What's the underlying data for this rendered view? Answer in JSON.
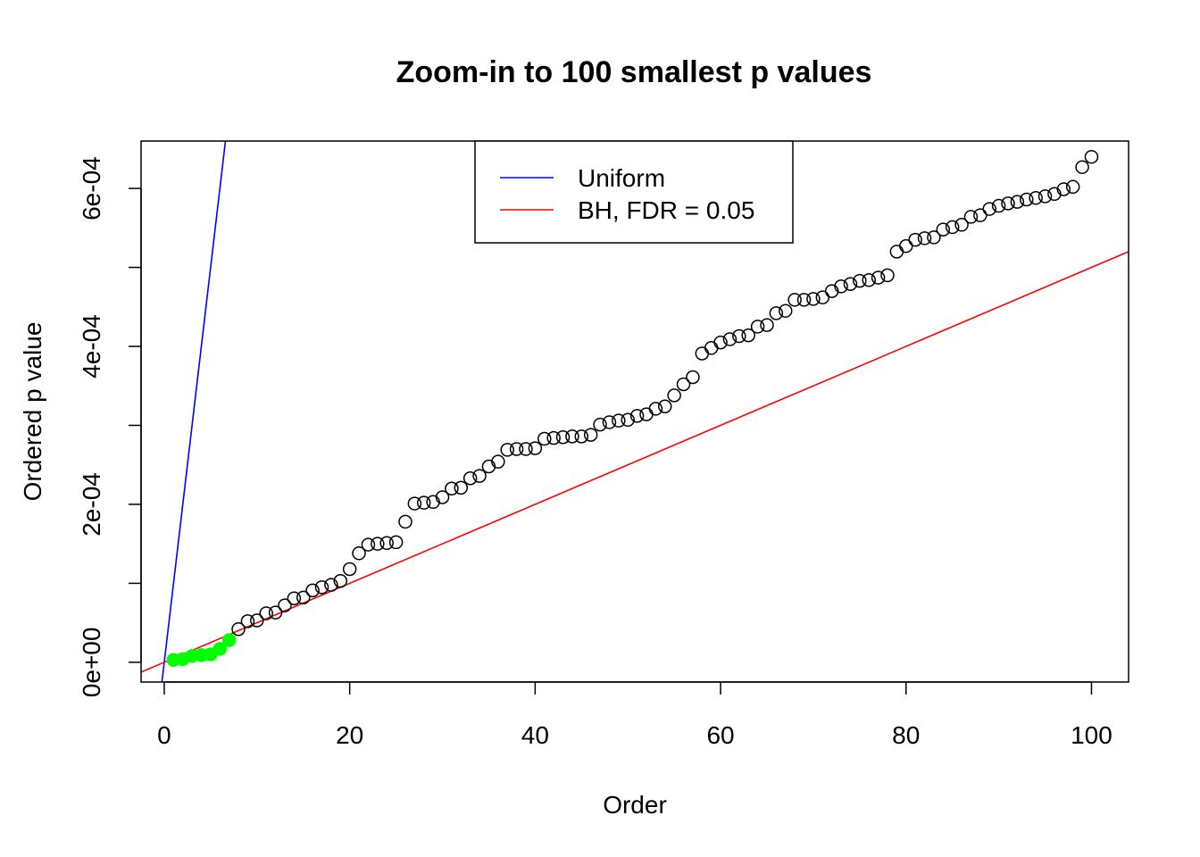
{
  "chart_data": {
    "type": "scatter",
    "title": "Zoom-in to 100 smallest p values",
    "xlabel": "Order",
    "ylabel": "Ordered p value",
    "xlim": [
      -2.5,
      104
    ],
    "ylim": [
      -2.5e-05,
      0.00066
    ],
    "x_ticks": [
      0,
      20,
      40,
      60,
      80,
      100
    ],
    "x_tick_labels": [
      "0",
      "20",
      "40",
      "60",
      "80",
      "100"
    ],
    "y_ticks": [
      0,
      0.0001,
      0.0002,
      0.0003,
      0.0004,
      0.0005,
      0.0006
    ],
    "y_tick_labels": [
      "0e+00",
      "",
      "2e-04",
      "",
      "4e-04",
      "",
      "6e-04"
    ],
    "grid": false,
    "legend": {
      "position": "top-center",
      "entries": [
        {
          "label": "Uniform",
          "color": "#0000ff"
        },
        {
          "label": "BH, FDR = 0.05",
          "color": "#ff0000"
        }
      ]
    },
    "lines": [
      {
        "name": "Uniform",
        "color": "#0000ff",
        "intercept": 0,
        "slope": 0.0001
      },
      {
        "name": "BH, FDR = 0.05",
        "color": "#ff0000",
        "intercept": 0,
        "slope": 5e-06
      }
    ],
    "significant_color": "#00ff00",
    "significant_count": 7,
    "x": [
      1,
      2,
      3,
      4,
      5,
      6,
      7,
      8,
      9,
      10,
      11,
      12,
      13,
      14,
      15,
      16,
      17,
      18,
      19,
      20,
      21,
      22,
      23,
      24,
      25,
      26,
      27,
      28,
      29,
      30,
      31,
      32,
      33,
      34,
      35,
      36,
      37,
      38,
      39,
      40,
      41,
      42,
      43,
      44,
      45,
      46,
      47,
      48,
      49,
      50,
      51,
      52,
      53,
      54,
      55,
      56,
      57,
      58,
      59,
      60,
      61,
      62,
      63,
      64,
      65,
      66,
      67,
      68,
      69,
      70,
      71,
      72,
      73,
      74,
      75,
      76,
      77,
      78,
      79,
      80,
      81,
      82,
      83,
      84,
      85,
      86,
      87,
      88,
      89,
      90,
      91,
      92,
      93,
      94,
      95,
      96,
      97,
      98,
      99,
      100
    ],
    "y": [
      3e-06,
      4e-06,
      8e-06,
      9e-06,
      1e-05,
      1.7e-05,
      2.8e-05,
      4.2e-05,
      5.2e-05,
      5.3e-05,
      6.2e-05,
      6.3e-05,
      7.2e-05,
      8.1e-05,
      8.2e-05,
      9.1e-05,
      9.5e-05,
      9.8e-05,
      0.000103,
      0.000118,
      0.000138,
      0.000149,
      0.00015,
      0.000151,
      0.000152,
      0.000178,
      0.000201,
      0.000202,
      0.000203,
      0.000209,
      0.00022,
      0.000221,
      0.000233,
      0.000236,
      0.000248,
      0.000254,
      0.000269,
      0.00027,
      0.00027,
      0.000271,
      0.000283,
      0.000284,
      0.000285,
      0.000286,
      0.000286,
      0.000288,
      0.000301,
      0.000304,
      0.000306,
      0.000307,
      0.000312,
      0.000314,
      0.000321,
      0.000324,
      0.000338,
      0.000352,
      0.000361,
      0.000391,
      0.000398,
      0.000405,
      0.000409,
      0.000413,
      0.000414,
      0.000425,
      0.000427,
      0.000442,
      0.000445,
      0.000459,
      0.000459,
      0.00046,
      0.000462,
      0.00047,
      0.000476,
      0.000479,
      0.000483,
      0.000484,
      0.000487,
      0.00049,
      0.00052,
      0.000527,
      0.000535,
      0.000537,
      0.000538,
      0.000548,
      0.000551,
      0.000554,
      0.000564,
      0.000566,
      0.000574,
      0.000578,
      0.000581,
      0.000583,
      0.000586,
      0.000588,
      0.00059,
      0.000593,
      0.000599,
      0.000602,
      0.000627,
      0.00064
    ]
  }
}
